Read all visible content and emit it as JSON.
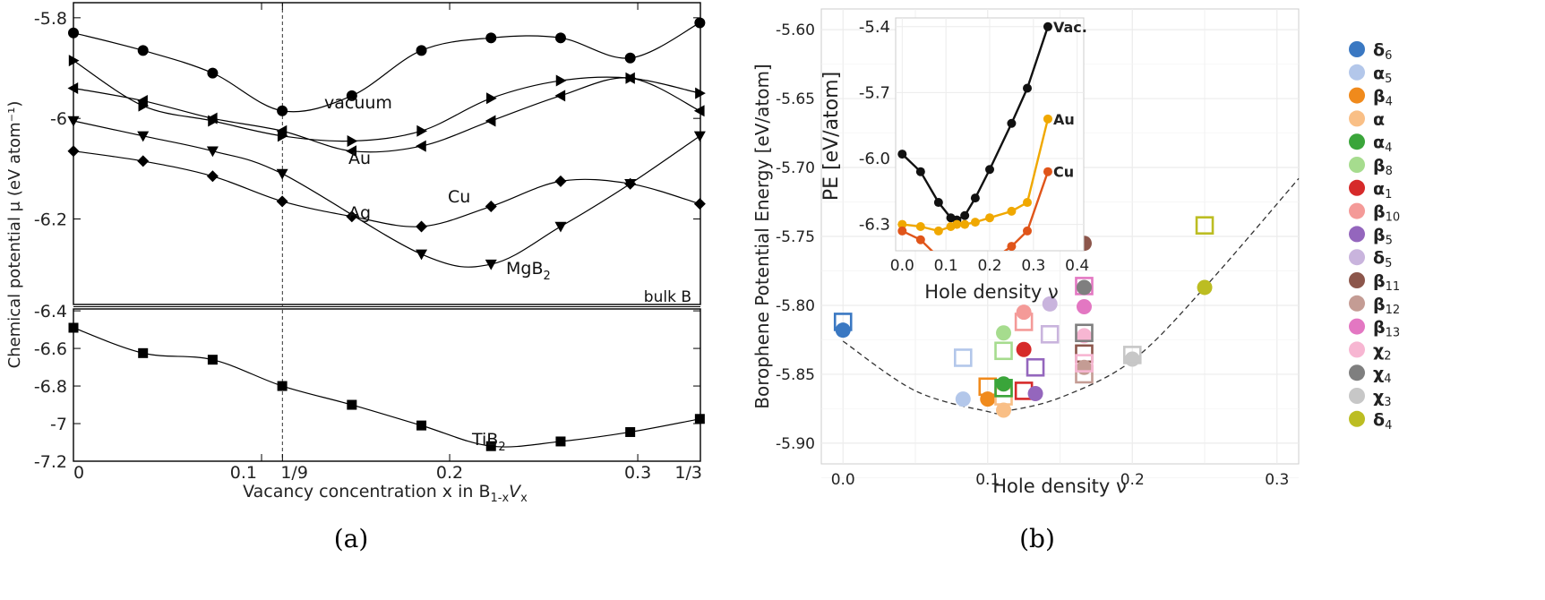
{
  "panel_a": {
    "caption": "(a)",
    "ylabel": "Chemical potential μ (eV atom⁻¹)",
    "xlabel": "Vacancy concentration x  in B",
    "xlabel_sub1": "1-x",
    "xlabel_mid": "V",
    "xlabel_sub2": "x",
    "bulk_label": "bulk B",
    "mgb2_label": "MgB",
    "mgb2_sub": "2",
    "tib2_label": "TiB",
    "tib2_sub": "2"
  },
  "panel_b": {
    "caption": "(b)",
    "inset_ylabel": "PE [eV/atom]",
    "inset_xlabel": "Hole density ν"
  },
  "chart_data": [
    {
      "type": "line",
      "panel": "a-top",
      "xlabel": "Vacancy concentration x in B1-xVx",
      "ylabel": "Chemical potential μ (eV atom⁻¹)",
      "xlim": [
        0,
        0.3333
      ],
      "ylim": [
        -6.37,
        -5.77
      ],
      "x_ticks": [
        {
          "v": 0,
          "label": "0"
        },
        {
          "v": 0.1,
          "label": "0.1"
        },
        {
          "v": 0.1111,
          "label": "1/9"
        },
        {
          "v": 0.2,
          "label": "0.2"
        },
        {
          "v": 0.3,
          "label": "0.3"
        },
        {
          "v": 0.3333,
          "label": "1/3"
        }
      ],
      "y_ticks": [
        {
          "v": -5.8,
          "label": "-5.8"
        },
        {
          "v": -6.0,
          "label": "-6"
        },
        {
          "v": -6.2,
          "label": "-6.2"
        }
      ],
      "reference_line_x": 0.1111,
      "series": [
        {
          "name": "vacuum",
          "marker": "circle",
          "x": [
            0,
            0.037,
            0.074,
            0.111,
            0.148,
            0.185,
            0.222,
            0.259,
            0.296,
            0.333
          ],
          "y": [
            -5.83,
            -5.865,
            -5.91,
            -5.985,
            -5.955,
            -5.865,
            -5.84,
            -5.84,
            -5.88,
            -5.81
          ]
        },
        {
          "name": "Au",
          "marker": "triangle-right",
          "x": [
            0,
            0.037,
            0.074,
            0.111,
            0.148,
            0.185,
            0.222,
            0.259,
            0.296,
            0.333
          ],
          "y": [
            -5.885,
            -5.975,
            -6.005,
            -6.035,
            -6.045,
            -6.025,
            -5.96,
            -5.925,
            -5.92,
            -5.95
          ]
        },
        {
          "name": "Ag",
          "marker": "triangle-left",
          "x": [
            0,
            0.037,
            0.074,
            0.111,
            0.148,
            0.185,
            0.222,
            0.259,
            0.296,
            0.333
          ],
          "y": [
            -5.94,
            -5.965,
            -6.0,
            -6.025,
            -6.065,
            -6.055,
            -6.005,
            -5.955,
            -5.92,
            -5.985
          ]
        },
        {
          "name": "Cu",
          "marker": "diamond",
          "x": [
            0,
            0.037,
            0.074,
            0.111,
            0.148,
            0.185,
            0.222,
            0.259,
            0.296,
            0.333
          ],
          "y": [
            -6.065,
            -6.085,
            -6.115,
            -6.165,
            -6.195,
            -6.215,
            -6.175,
            -6.125,
            -6.13,
            -6.17
          ]
        },
        {
          "name": "MgB2",
          "marker": "triangle-down",
          "x": [
            0,
            0.037,
            0.074,
            0.111,
            0.185,
            0.222,
            0.259,
            0.296,
            0.333
          ],
          "y": [
            -6.005,
            -6.035,
            -6.065,
            -6.11,
            -6.27,
            -6.29,
            -6.215,
            -6.13,
            -6.035
          ]
        }
      ]
    },
    {
      "type": "line",
      "panel": "a-bottom",
      "xlim": [
        0,
        0.3333
      ],
      "ylim": [
        -7.2,
        -6.39
      ],
      "y_ticks": [
        {
          "v": -6.4,
          "label": "-6.4"
        },
        {
          "v": -6.6,
          "label": "-6.6"
        },
        {
          "v": -6.8,
          "label": "-6.8"
        },
        {
          "v": -7.0,
          "label": "-7"
        },
        {
          "v": -7.2,
          "label": "-7.2"
        }
      ],
      "series": [
        {
          "name": "TiB2",
          "marker": "square",
          "x": [
            0,
            0.037,
            0.074,
            0.111,
            0.148,
            0.185,
            0.222,
            0.259,
            0.296,
            0.333
          ],
          "y": [
            -6.49,
            -6.625,
            -6.66,
            -6.8,
            -6.9,
            -7.01,
            -7.12,
            -7.095,
            -7.045,
            -6.975
          ]
        }
      ]
    },
    {
      "type": "scatter",
      "panel": "b",
      "xlabel": "Hole density ν",
      "ylabel": "Borophene Potential Energy [eV/atom]",
      "xlim": [
        -0.015,
        0.315
      ],
      "ylim": [
        -5.915,
        -5.585
      ],
      "x_ticks": [
        "0.0",
        "0.1",
        "0.2",
        "0.3"
      ],
      "y_ticks": [
        "-5.60",
        "-5.65",
        "-5.70",
        "-5.75",
        "-5.80",
        "-5.85",
        "-5.90"
      ],
      "grid": true,
      "legend_position": "right",
      "fit_curve": {
        "style": "dashed",
        "x": [
          0,
          0.05,
          0.1,
          0.111,
          0.15,
          0.2,
          0.25,
          0.315
        ],
        "y": [
          -5.826,
          -5.862,
          -5.877,
          -5.877,
          -5.867,
          -5.84,
          -5.787,
          -5.708
        ]
      },
      "series": [
        {
          "name": "δ6",
          "color": "#3a78c2",
          "points": [
            {
              "x": 0.0,
              "y": -5.818,
              "shape": "circle"
            },
            {
              "x": 0.0,
              "y": -5.812,
              "shape": "square"
            }
          ]
        },
        {
          "name": "α5",
          "color": "#b3c7ea",
          "points": [
            {
              "x": 0.083,
              "y": -5.868,
              "shape": "circle"
            },
            {
              "x": 0.083,
              "y": -5.838,
              "shape": "square"
            }
          ]
        },
        {
          "name": "β4",
          "color": "#f08a1c",
          "points": [
            {
              "x": 0.1,
              "y": -5.868,
              "shape": "circle"
            },
            {
              "x": 0.1,
              "y": -5.859,
              "shape": "square"
            }
          ]
        },
        {
          "name": "α",
          "color": "#f9bf86",
          "points": [
            {
              "x": 0.111,
              "y": -5.876,
              "shape": "circle"
            },
            {
              "x": 0.111,
              "y": -5.866,
              "shape": "square"
            }
          ]
        },
        {
          "name": "α4",
          "color": "#3aa53a",
          "points": [
            {
              "x": 0.111,
              "y": -5.857,
              "shape": "circle"
            },
            {
              "x": 0.111,
              "y": -5.86,
              "shape": "square"
            }
          ]
        },
        {
          "name": "β8",
          "color": "#a6dc8e",
          "points": [
            {
              "x": 0.111,
              "y": -5.82,
              "shape": "circle"
            },
            {
              "x": 0.111,
              "y": -5.833,
              "shape": "square"
            }
          ]
        },
        {
          "name": "α1",
          "color": "#d62a2a",
          "points": [
            {
              "x": 0.125,
              "y": -5.832,
              "shape": "circle"
            },
            {
              "x": 0.125,
              "y": -5.862,
              "shape": "square"
            }
          ]
        },
        {
          "name": "β10",
          "color": "#f49a98",
          "points": [
            {
              "x": 0.125,
              "y": -5.805,
              "shape": "circle"
            },
            {
              "x": 0.125,
              "y": -5.812,
              "shape": "square"
            }
          ]
        },
        {
          "name": "β5",
          "color": "#9466bd",
          "points": [
            {
              "x": 0.133,
              "y": -5.864,
              "shape": "circle"
            },
            {
              "x": 0.133,
              "y": -5.845,
              "shape": "square"
            }
          ]
        },
        {
          "name": "δ5",
          "color": "#c9b4dd",
          "points": [
            {
              "x": 0.143,
              "y": -5.799,
              "shape": "circle"
            },
            {
              "x": 0.143,
              "y": -5.821,
              "shape": "square"
            }
          ]
        },
        {
          "name": "β11",
          "color": "#8c564b",
          "points": [
            {
              "x": 0.1667,
              "y": -5.755,
              "shape": "circle"
            },
            {
              "x": 0.1667,
              "y": -5.835,
              "shape": "square"
            }
          ]
        },
        {
          "name": "β12",
          "color": "#c49c94",
          "points": [
            {
              "x": 0.1667,
              "y": -5.845,
              "shape": "circle"
            },
            {
              "x": 0.1667,
              "y": -5.85,
              "shape": "square"
            }
          ]
        },
        {
          "name": "β13",
          "color": "#e377c2",
          "points": [
            {
              "x": 0.1667,
              "y": -5.801,
              "shape": "circle"
            },
            {
              "x": 0.1667,
              "y": -5.786,
              "shape": "square"
            }
          ]
        },
        {
          "name": "χ2",
          "color": "#f7b6d2",
          "points": [
            {
              "x": 0.1667,
              "y": -5.822,
              "shape": "circle"
            },
            {
              "x": 0.1667,
              "y": -5.842,
              "shape": "square"
            }
          ]
        },
        {
          "name": "χ4",
          "color": "#7f7f7f",
          "points": [
            {
              "x": 0.1667,
              "y": -5.787,
              "shape": "circle"
            },
            {
              "x": 0.1667,
              "y": -5.82,
              "shape": "square"
            }
          ]
        },
        {
          "name": "χ3",
          "color": "#c7c7c7",
          "points": [
            {
              "x": 0.2,
              "y": -5.839,
              "shape": "circle"
            },
            {
              "x": 0.2,
              "y": -5.836,
              "shape": "square"
            }
          ]
        },
        {
          "name": "δ4",
          "color": "#bcbd22",
          "points": [
            {
              "x": 0.25,
              "y": -5.787,
              "shape": "circle"
            },
            {
              "x": 0.25,
              "y": -5.742,
              "shape": "square"
            }
          ]
        }
      ]
    },
    {
      "type": "line",
      "panel": "b-inset",
      "xlabel": "Hole density ν",
      "ylabel": "PE [eV/atom]",
      "xlim": [
        -0.015,
        0.415
      ],
      "ylim": [
        -6.42,
        -5.36
      ],
      "x_ticks": [
        "0.0",
        "0.1",
        "0.2",
        "0.3",
        "0.4"
      ],
      "y_ticks": [
        "-5.4",
        "-5.7",
        "-6.0",
        "-6.3"
      ],
      "grid": true,
      "series": [
        {
          "name": "Vac.",
          "color": "#111111",
          "x": [
            0.0,
            0.042,
            0.083,
            0.111,
            0.125,
            0.143,
            0.167,
            0.2,
            0.25,
            0.286,
            0.333
          ],
          "y": [
            -5.98,
            -6.06,
            -6.2,
            -6.27,
            -6.28,
            -6.26,
            -6.18,
            -6.05,
            -5.84,
            -5.68,
            -5.4
          ]
        },
        {
          "name": "Au",
          "color": "#f0a800",
          "x": [
            0.0,
            0.042,
            0.083,
            0.111,
            0.125,
            0.143,
            0.167,
            0.2,
            0.25,
            0.286,
            0.333
          ],
          "y": [
            -6.3,
            -6.31,
            -6.33,
            -6.31,
            -6.3,
            -6.3,
            -6.29,
            -6.27,
            -6.24,
            -6.2,
            -5.82
          ]
        },
        {
          "name": "Cu",
          "color": "#e0551a",
          "x": [
            0.0,
            0.042,
            0.083,
            0.111,
            0.125,
            0.167,
            0.2,
            0.25,
            0.286,
            0.333
          ],
          "y": [
            -6.33,
            -6.37,
            -6.45,
            -6.47,
            -6.45,
            -6.52,
            -6.47,
            -6.4,
            -6.33,
            -6.06
          ]
        }
      ]
    }
  ]
}
